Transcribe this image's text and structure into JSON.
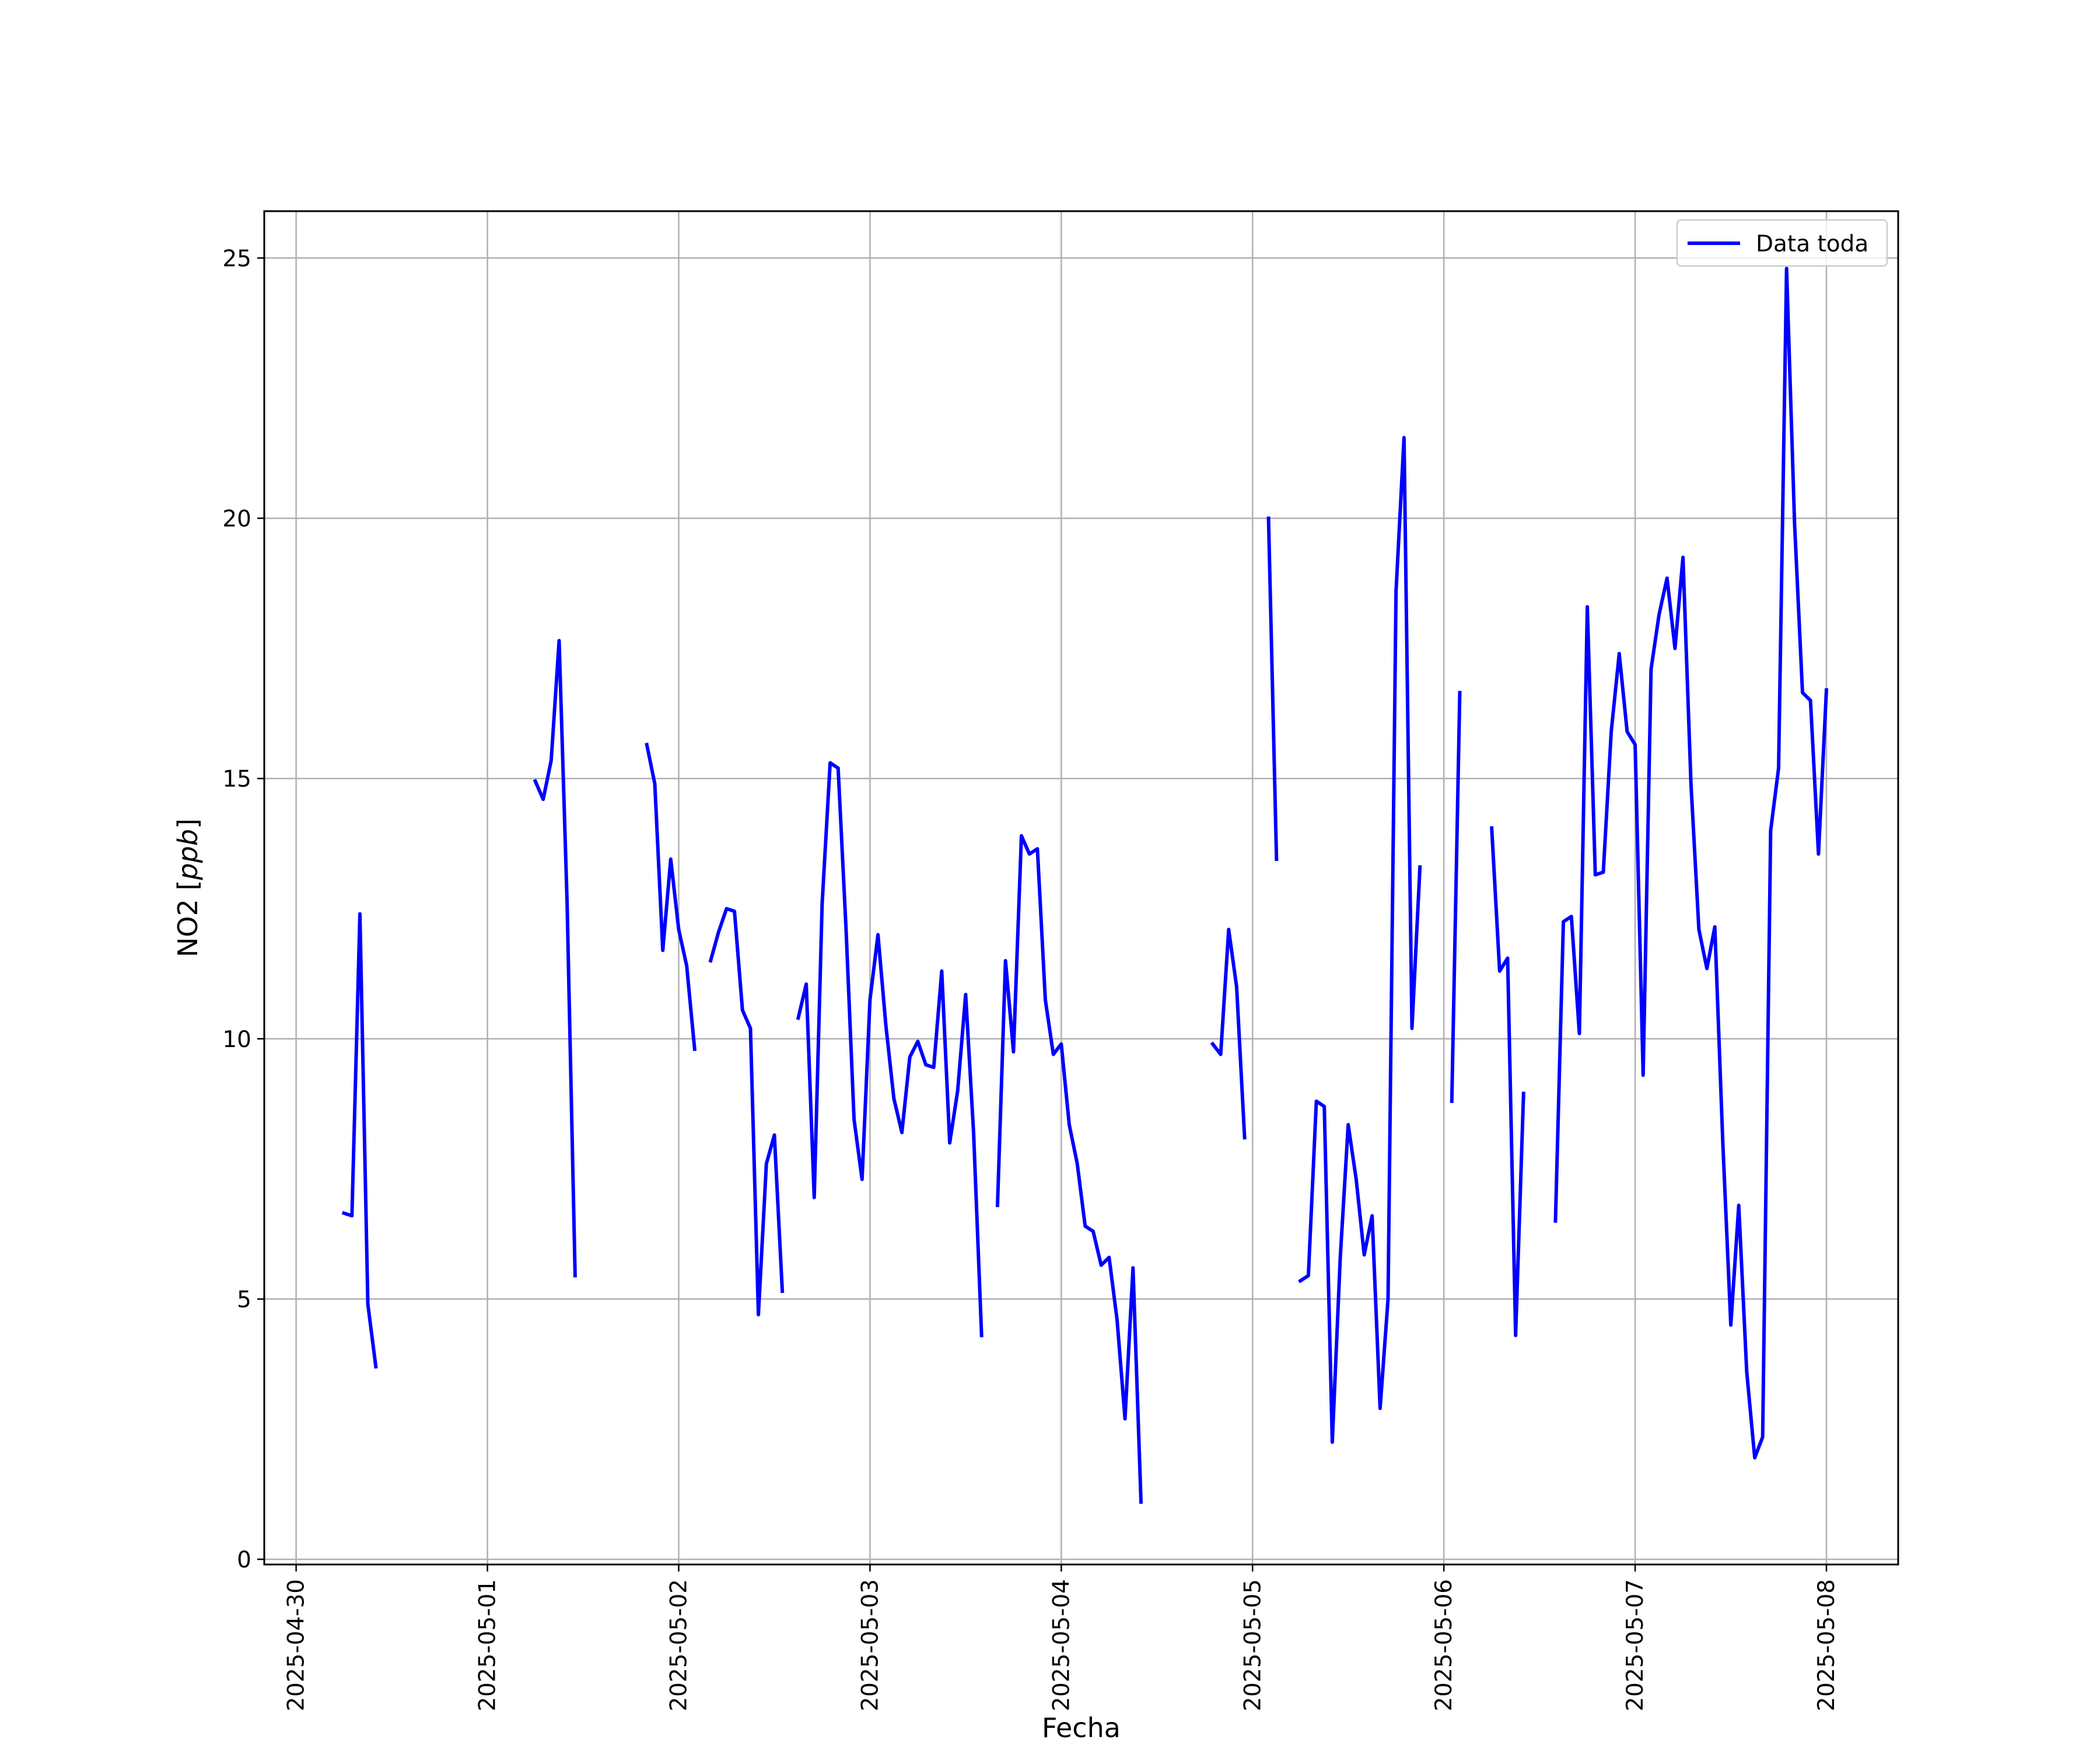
{
  "chart_data": {
    "type": "line",
    "xlabel": "Fecha",
    "ylabel_prefix": "NO2 [",
    "ylabel_unit": "ppb",
    "ylabel_suffix": "]",
    "x_axis_type": "date",
    "xlim": [
      "2025-04-29T20:00",
      "2025-05-08T09:00"
    ],
    "ylim": [
      -0.1,
      25.9
    ],
    "x_ticks": [
      "2025-04-30",
      "2025-05-01",
      "2025-05-02",
      "2025-05-03",
      "2025-05-04",
      "2025-05-05",
      "2025-05-06",
      "2025-05-07",
      "2025-05-08"
    ],
    "y_ticks": [
      0,
      5,
      10,
      15,
      20,
      25
    ],
    "grid": true,
    "legend_position": "top-right",
    "colors": {
      "series": "#0000ff",
      "grid": "#b0b0b0",
      "axes": "#000000"
    },
    "series": [
      {
        "name": "Data toda",
        "points": [
          [
            "2025-04-30T06:00",
            6.65
          ],
          [
            "2025-04-30T07:00",
            6.6
          ],
          [
            "2025-04-30T08:00",
            12.4
          ],
          [
            "2025-04-30T09:00",
            4.9
          ],
          [
            "2025-04-30T10:00",
            3.7
          ],
          [
            "2025-04-30T11:00",
            null
          ],
          [
            "2025-05-01T06:00",
            14.95
          ],
          [
            "2025-05-01T07:00",
            14.6
          ],
          [
            "2025-05-01T08:00",
            15.35
          ],
          [
            "2025-05-01T09:00",
            17.65
          ],
          [
            "2025-05-01T10:00",
            12.6
          ],
          [
            "2025-05-01T11:00",
            5.45
          ],
          [
            "2025-05-01T12:00",
            null
          ],
          [
            "2025-05-01T20:00",
            15.65
          ],
          [
            "2025-05-01T21:00",
            14.9
          ],
          [
            "2025-05-01T22:00",
            11.7
          ],
          [
            "2025-05-01T23:00",
            13.45
          ],
          [
            "2025-05-02T00:00",
            12.1
          ],
          [
            "2025-05-02T01:00",
            11.4
          ],
          [
            "2025-05-02T02:00",
            9.8
          ],
          [
            "2025-05-02T03:00",
            null
          ],
          [
            "2025-05-02T04:00",
            11.5
          ],
          [
            "2025-05-02T05:00",
            12.05
          ],
          [
            "2025-05-02T06:00",
            12.5
          ],
          [
            "2025-05-02T07:00",
            12.45
          ],
          [
            "2025-05-02T08:00",
            10.55
          ],
          [
            "2025-05-02T09:00",
            10.2
          ],
          [
            "2025-05-02T10:00",
            4.7
          ],
          [
            "2025-05-02T11:00",
            7.6
          ],
          [
            "2025-05-02T12:00",
            8.15
          ],
          [
            "2025-05-02T13:00",
            5.15
          ],
          [
            "2025-05-02T14:00",
            null
          ],
          [
            "2025-05-02T15:00",
            10.4
          ],
          [
            "2025-05-02T16:00",
            11.05
          ],
          [
            "2025-05-02T17:00",
            6.95
          ],
          [
            "2025-05-02T18:00",
            12.6
          ],
          [
            "2025-05-02T19:00",
            15.3
          ],
          [
            "2025-05-02T20:00",
            15.2
          ],
          [
            "2025-05-02T21:00",
            12.1
          ],
          [
            "2025-05-02T22:00",
            8.45
          ],
          [
            "2025-05-02T23:00",
            7.3
          ],
          [
            "2025-05-03T00:00",
            10.75
          ],
          [
            "2025-05-03T01:00",
            12.0
          ],
          [
            "2025-05-03T02:00",
            10.25
          ],
          [
            "2025-05-03T03:00",
            8.85
          ],
          [
            "2025-05-03T04:00",
            8.2
          ],
          [
            "2025-05-03T05:00",
            9.65
          ],
          [
            "2025-05-03T06:00",
            9.95
          ],
          [
            "2025-05-03T07:00",
            9.5
          ],
          [
            "2025-05-03T08:00",
            9.45
          ],
          [
            "2025-05-03T09:00",
            11.3
          ],
          [
            "2025-05-03T10:00",
            8.0
          ],
          [
            "2025-05-03T11:00",
            9.0
          ],
          [
            "2025-05-03T12:00",
            10.85
          ],
          [
            "2025-05-03T13:00",
            8.2
          ],
          [
            "2025-05-03T14:00",
            4.3
          ],
          [
            "2025-05-03T15:00",
            null
          ],
          [
            "2025-05-03T16:00",
            6.8
          ],
          [
            "2025-05-03T17:00",
            11.5
          ],
          [
            "2025-05-03T18:00",
            9.75
          ],
          [
            "2025-05-03T19:00",
            13.9
          ],
          [
            "2025-05-03T20:00",
            13.55
          ],
          [
            "2025-05-03T21:00",
            13.65
          ],
          [
            "2025-05-03T22:00",
            10.75
          ],
          [
            "2025-05-03T23:00",
            9.7
          ],
          [
            "2025-05-04T00:00",
            9.9
          ],
          [
            "2025-05-04T01:00",
            8.35
          ],
          [
            "2025-05-04T02:00",
            7.6
          ],
          [
            "2025-05-04T03:00",
            6.4
          ],
          [
            "2025-05-04T04:00",
            6.3
          ],
          [
            "2025-05-04T05:00",
            5.65
          ],
          [
            "2025-05-04T06:00",
            5.8
          ],
          [
            "2025-05-04T07:00",
            4.6
          ],
          [
            "2025-05-04T08:00",
            2.7
          ],
          [
            "2025-05-04T09:00",
            5.6
          ],
          [
            "2025-05-04T10:00",
            1.1
          ],
          [
            "2025-05-04T11:00",
            null
          ],
          [
            "2025-05-04T19:00",
            9.9
          ],
          [
            "2025-05-04T20:00",
            9.7
          ],
          [
            "2025-05-04T21:00",
            12.1
          ],
          [
            "2025-05-04T22:00",
            11.0
          ],
          [
            "2025-05-04T23:00",
            8.1
          ],
          [
            "2025-05-05T00:00",
            null
          ],
          [
            "2025-05-05T02:00",
            20.0
          ],
          [
            "2025-05-05T03:00",
            13.45
          ],
          [
            "2025-05-05T04:00",
            null
          ],
          [
            "2025-05-05T06:00",
            5.35
          ],
          [
            "2025-05-05T07:00",
            5.45
          ],
          [
            "2025-05-05T08:00",
            8.8
          ],
          [
            "2025-05-05T09:00",
            8.7
          ],
          [
            "2025-05-05T10:00",
            2.25
          ],
          [
            "2025-05-05T11:00",
            5.8
          ],
          [
            "2025-05-05T12:00",
            8.35
          ],
          [
            "2025-05-05T13:00",
            7.3
          ],
          [
            "2025-05-05T14:00",
            5.85
          ],
          [
            "2025-05-05T15:00",
            6.6
          ],
          [
            "2025-05-05T16:00",
            2.9
          ],
          [
            "2025-05-05T17:00",
            5.0
          ],
          [
            "2025-05-05T18:00",
            18.6
          ],
          [
            "2025-05-05T19:00",
            21.55
          ],
          [
            "2025-05-05T20:00",
            10.2
          ],
          [
            "2025-05-05T21:00",
            13.3
          ],
          [
            "2025-05-05T22:00",
            null
          ],
          [
            "2025-05-06T01:00",
            8.8
          ],
          [
            "2025-05-06T02:00",
            16.65
          ],
          [
            "2025-05-06T03:00",
            null
          ],
          [
            "2025-05-06T06:00",
            14.05
          ],
          [
            "2025-05-06T07:00",
            11.3
          ],
          [
            "2025-05-06T08:00",
            11.55
          ],
          [
            "2025-05-06T09:00",
            4.3
          ],
          [
            "2025-05-06T10:00",
            8.95
          ],
          [
            "2025-05-06T11:00",
            null
          ],
          [
            "2025-05-06T14:00",
            6.5
          ],
          [
            "2025-05-06T15:00",
            12.25
          ],
          [
            "2025-05-06T16:00",
            12.35
          ],
          [
            "2025-05-06T17:00",
            10.1
          ],
          [
            "2025-05-06T18:00",
            18.3
          ],
          [
            "2025-05-06T19:00",
            13.15
          ],
          [
            "2025-05-06T20:00",
            13.2
          ],
          [
            "2025-05-06T21:00",
            15.9
          ],
          [
            "2025-05-06T22:00",
            17.4
          ],
          [
            "2025-05-06T23:00",
            15.9
          ],
          [
            "2025-05-07T00:00",
            15.65
          ],
          [
            "2025-05-07T01:00",
            9.3
          ],
          [
            "2025-05-07T02:00",
            17.1
          ],
          [
            "2025-05-07T03:00",
            18.15
          ],
          [
            "2025-05-07T04:00",
            18.85
          ],
          [
            "2025-05-07T05:00",
            17.5
          ],
          [
            "2025-05-07T06:00",
            19.25
          ],
          [
            "2025-05-07T07:00",
            14.9
          ],
          [
            "2025-05-07T08:00",
            12.1
          ],
          [
            "2025-05-07T09:00",
            11.35
          ],
          [
            "2025-05-07T10:00",
            12.15
          ],
          [
            "2025-05-07T11:00",
            8.0
          ],
          [
            "2025-05-07T12:00",
            4.5
          ],
          [
            "2025-05-07T13:00",
            6.8
          ],
          [
            "2025-05-07T14:00",
            3.6
          ],
          [
            "2025-05-07T15:00",
            1.95
          ],
          [
            "2025-05-07T16:00",
            2.35
          ],
          [
            "2025-05-07T17:00",
            14.0
          ],
          [
            "2025-05-07T18:00",
            15.2
          ],
          [
            "2025-05-07T19:00",
            24.8
          ],
          [
            "2025-05-07T20:00",
            19.9
          ],
          [
            "2025-05-07T21:00",
            16.65
          ],
          [
            "2025-05-07T22:00",
            16.5
          ],
          [
            "2025-05-07T23:00",
            13.55
          ],
          [
            "2025-05-08T00:00",
            16.7
          ]
        ]
      }
    ]
  }
}
